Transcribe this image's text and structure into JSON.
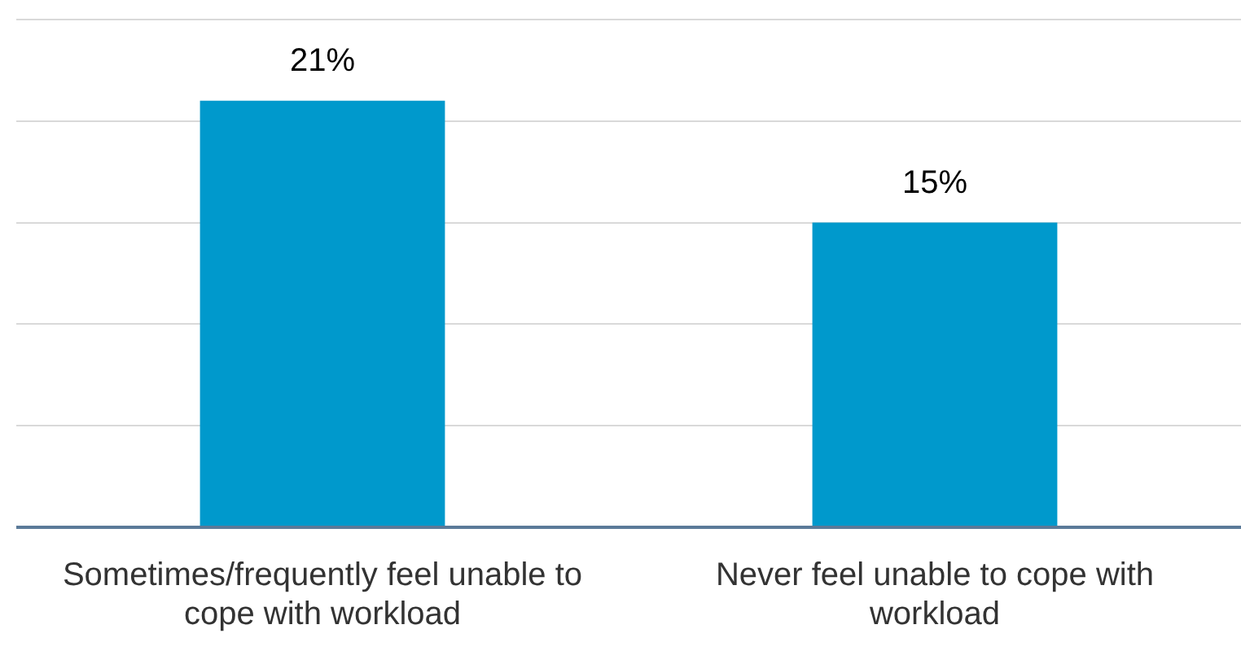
{
  "chart_data": {
    "type": "bar",
    "categories": [
      "Sometimes/frequently feel unable to cope with workload",
      "Never feel unable to cope with workload"
    ],
    "values": [
      21,
      15
    ],
    "value_labels": [
      "21%",
      "15%"
    ],
    "color": "#0099cc",
    "grid": "y",
    "tick_labels": "x",
    "legend": false
  }
}
